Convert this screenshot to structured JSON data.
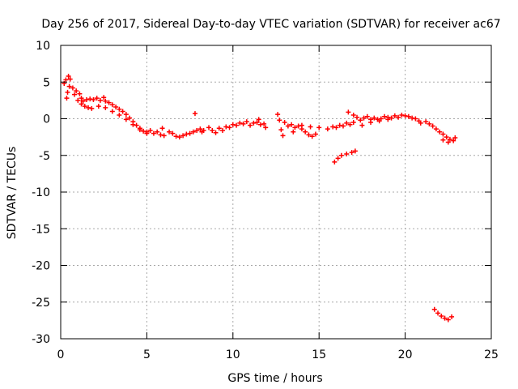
{
  "chart_data": {
    "type": "scatter",
    "title": "Day 256 of 2017, Sidereal Day-to-day VTEC variation (SDTVAR) for receiver ac67",
    "xlabel": "GPS time / hours",
    "ylabel": "SDTVAR / TECUs",
    "xlim": [
      0,
      25
    ],
    "ylim": [
      -30,
      10
    ],
    "xticks": [
      0,
      5,
      10,
      15,
      20,
      25
    ],
    "yticks": [
      -30,
      -25,
      -20,
      -15,
      -10,
      -5,
      0,
      5,
      10
    ],
    "xtick_labels": [
      "0",
      "5",
      "10",
      "15",
      "20",
      "25"
    ],
    "ytick_labels": [
      "-30",
      "-25",
      "-20",
      "-15",
      "-10",
      "-5",
      "0",
      "5",
      "10"
    ],
    "grid": true,
    "marker": "+",
    "series": [
      {
        "name": "SDTVAR",
        "color": "#ff0000",
        "points": [
          [
            0.2,
            4.8
          ],
          [
            0.3,
            5.3
          ],
          [
            0.45,
            5.8
          ],
          [
            0.55,
            5.4
          ],
          [
            0.35,
            2.8
          ],
          [
            0.4,
            3.6
          ],
          [
            0.5,
            4.4
          ],
          [
            0.7,
            4.2
          ],
          [
            0.9,
            3.8
          ],
          [
            1.1,
            3.4
          ],
          [
            1.2,
            2.8
          ],
          [
            1.3,
            2.4
          ],
          [
            1.5,
            2.6
          ],
          [
            1.7,
            2.7
          ],
          [
            1.9,
            2.6
          ],
          [
            0.8,
            3.3
          ],
          [
            1.0,
            2.5
          ],
          [
            1.2,
            2.0
          ],
          [
            1.4,
            1.7
          ],
          [
            1.6,
            1.5
          ],
          [
            1.8,
            1.4
          ],
          [
            2.1,
            2.8
          ],
          [
            2.3,
            2.5
          ],
          [
            2.5,
            2.9
          ],
          [
            2.6,
            2.4
          ],
          [
            2.8,
            2.2
          ],
          [
            3.0,
            1.9
          ],
          [
            3.2,
            1.6
          ],
          [
            3.4,
            1.3
          ],
          [
            3.6,
            1.0
          ],
          [
            3.8,
            0.6
          ],
          [
            4.0,
            0.1
          ],
          [
            4.2,
            -0.4
          ],
          [
            4.4,
            -0.9
          ],
          [
            4.6,
            -1.3
          ],
          [
            4.8,
            -1.7
          ],
          [
            5.0,
            -1.8
          ],
          [
            2.2,
            1.7
          ],
          [
            2.6,
            1.5
          ],
          [
            3.0,
            1.0
          ],
          [
            3.4,
            0.5
          ],
          [
            3.8,
            -0.1
          ],
          [
            4.2,
            -0.8
          ],
          [
            4.6,
            -1.5
          ],
          [
            5.0,
            -2.0
          ],
          [
            5.2,
            -1.6
          ],
          [
            5.4,
            -2.0
          ],
          [
            5.6,
            -1.8
          ],
          [
            5.8,
            -2.2
          ],
          [
            6.0,
            -2.3
          ],
          [
            5.9,
            -1.3
          ],
          [
            6.3,
            -1.8
          ],
          [
            6.5,
            -2.0
          ],
          [
            6.7,
            -2.4
          ],
          [
            6.9,
            -2.5
          ],
          [
            7.1,
            -2.3
          ],
          [
            7.3,
            -2.1
          ],
          [
            7.5,
            -2.0
          ],
          [
            7.7,
            -1.8
          ],
          [
            7.9,
            -1.6
          ],
          [
            8.1,
            -1.4
          ],
          [
            8.2,
            -1.8
          ],
          [
            7.8,
            0.7
          ],
          [
            8.3,
            -1.6
          ],
          [
            8.6,
            -1.2
          ],
          [
            8.8,
            -1.6
          ],
          [
            9.0,
            -1.9
          ],
          [
            9.2,
            -1.3
          ],
          [
            9.4,
            -1.6
          ],
          [
            9.6,
            -1.1
          ],
          [
            9.8,
            -1.2
          ],
          [
            10.0,
            -0.8
          ],
          [
            10.2,
            -0.9
          ],
          [
            10.4,
            -0.6
          ],
          [
            10.6,
            -0.7
          ],
          [
            10.8,
            -0.4
          ],
          [
            11.0,
            -0.9
          ],
          [
            11.2,
            -0.6
          ],
          [
            11.4,
            -0.5
          ],
          [
            11.6,
            -0.8
          ],
          [
            11.8,
            -0.7
          ],
          [
            11.9,
            -1.2
          ],
          [
            11.5,
            -0.1
          ],
          [
            12.6,
            0.6
          ],
          [
            12.7,
            -0.2
          ],
          [
            12.8,
            -1.5
          ],
          [
            12.9,
            -2.3
          ],
          [
            13.0,
            -0.5
          ],
          [
            13.2,
            -1.0
          ],
          [
            13.4,
            -0.8
          ],
          [
            13.6,
            -1.2
          ],
          [
            13.8,
            -1.0
          ],
          [
            14.0,
            -1.4
          ],
          [
            14.2,
            -1.8
          ],
          [
            14.4,
            -2.2
          ],
          [
            14.6,
            -2.4
          ],
          [
            14.8,
            -2.1
          ],
          [
            13.5,
            -1.8
          ],
          [
            14.0,
            -0.9
          ],
          [
            14.5,
            -1.1
          ],
          [
            15.0,
            -1.2
          ],
          [
            15.5,
            -1.4
          ],
          [
            15.8,
            -1.1
          ],
          [
            16.0,
            -1.2
          ],
          [
            16.2,
            -0.9
          ],
          [
            16.4,
            -1.0
          ],
          [
            16.6,
            -0.6
          ],
          [
            16.8,
            -0.8
          ],
          [
            17.0,
            -0.5
          ],
          [
            15.9,
            -5.9
          ],
          [
            16.1,
            -5.4
          ],
          [
            16.3,
            -5.0
          ],
          [
            16.6,
            -4.8
          ],
          [
            16.9,
            -4.6
          ],
          [
            17.1,
            -4.4
          ],
          [
            16.7,
            0.9
          ],
          [
            17.0,
            0.5
          ],
          [
            17.2,
            0.2
          ],
          [
            17.4,
            -0.2
          ],
          [
            17.6,
            0.1
          ],
          [
            17.8,
            0.3
          ],
          [
            18.0,
            -0.1
          ],
          [
            18.2,
            0.1
          ],
          [
            18.4,
            -0.1
          ],
          [
            18.6,
            0.0
          ],
          [
            18.8,
            0.3
          ],
          [
            19.0,
            0.2
          ],
          [
            19.2,
            0.1
          ],
          [
            19.4,
            0.4
          ],
          [
            19.6,
            0.2
          ],
          [
            19.8,
            0.5
          ],
          [
            20.0,
            0.4
          ],
          [
            20.2,
            0.3
          ],
          [
            20.4,
            0.1
          ],
          [
            20.6,
            0.0
          ],
          [
            20.8,
            -0.3
          ],
          [
            17.5,
            -0.9
          ],
          [
            18.0,
            -0.5
          ],
          [
            18.5,
            -0.3
          ],
          [
            19.0,
            -0.1
          ],
          [
            20.9,
            -0.6
          ],
          [
            21.2,
            -0.4
          ],
          [
            21.4,
            -0.7
          ],
          [
            21.6,
            -1.0
          ],
          [
            21.8,
            -1.4
          ],
          [
            22.0,
            -1.8
          ],
          [
            22.2,
            -2.1
          ],
          [
            22.4,
            -2.5
          ],
          [
            22.6,
            -2.8
          ],
          [
            22.8,
            -3.0
          ],
          [
            22.9,
            -2.6
          ],
          [
            22.5,
            -3.2
          ],
          [
            22.2,
            -2.9
          ],
          [
            21.7,
            -26.0
          ],
          [
            21.9,
            -26.5
          ],
          [
            22.1,
            -26.9
          ],
          [
            22.3,
            -27.2
          ],
          [
            22.5,
            -27.4
          ],
          [
            22.7,
            -27.0
          ]
        ]
      }
    ]
  }
}
